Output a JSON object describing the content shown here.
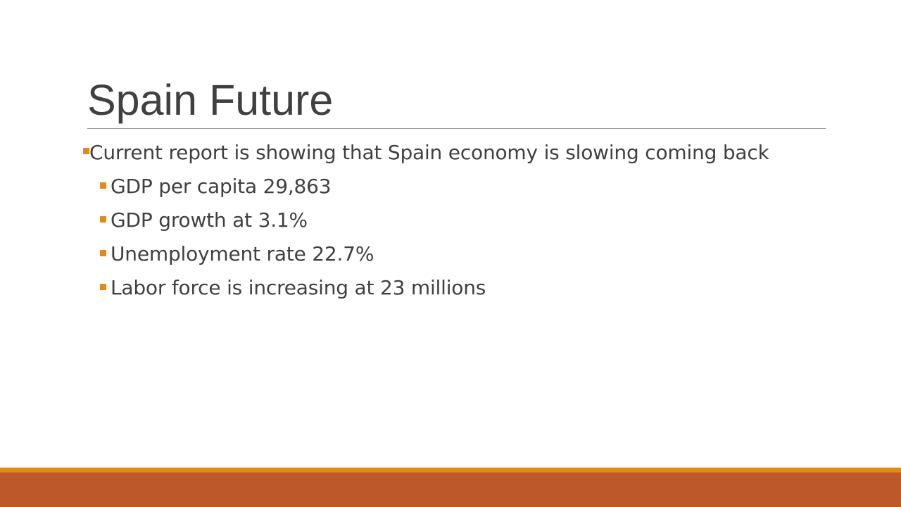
{
  "slide": {
    "title": "Spain Future",
    "bullets": [
      {
        "text": "Current report is showing that Spain economy is slowing coming back",
        "sub_bullets": [
          "GDP per capita 29,863",
          "GDP growth at 3.1%",
          "Unemployment rate 22.7%",
          "Labor force is increasing at 23 millions"
        ]
      }
    ]
  },
  "theme": {
    "bullet_color": "#e48a1b",
    "footer_accent_color": "#e48a1b",
    "footer_band_color": "#bd582b",
    "text_color": "#404040"
  }
}
